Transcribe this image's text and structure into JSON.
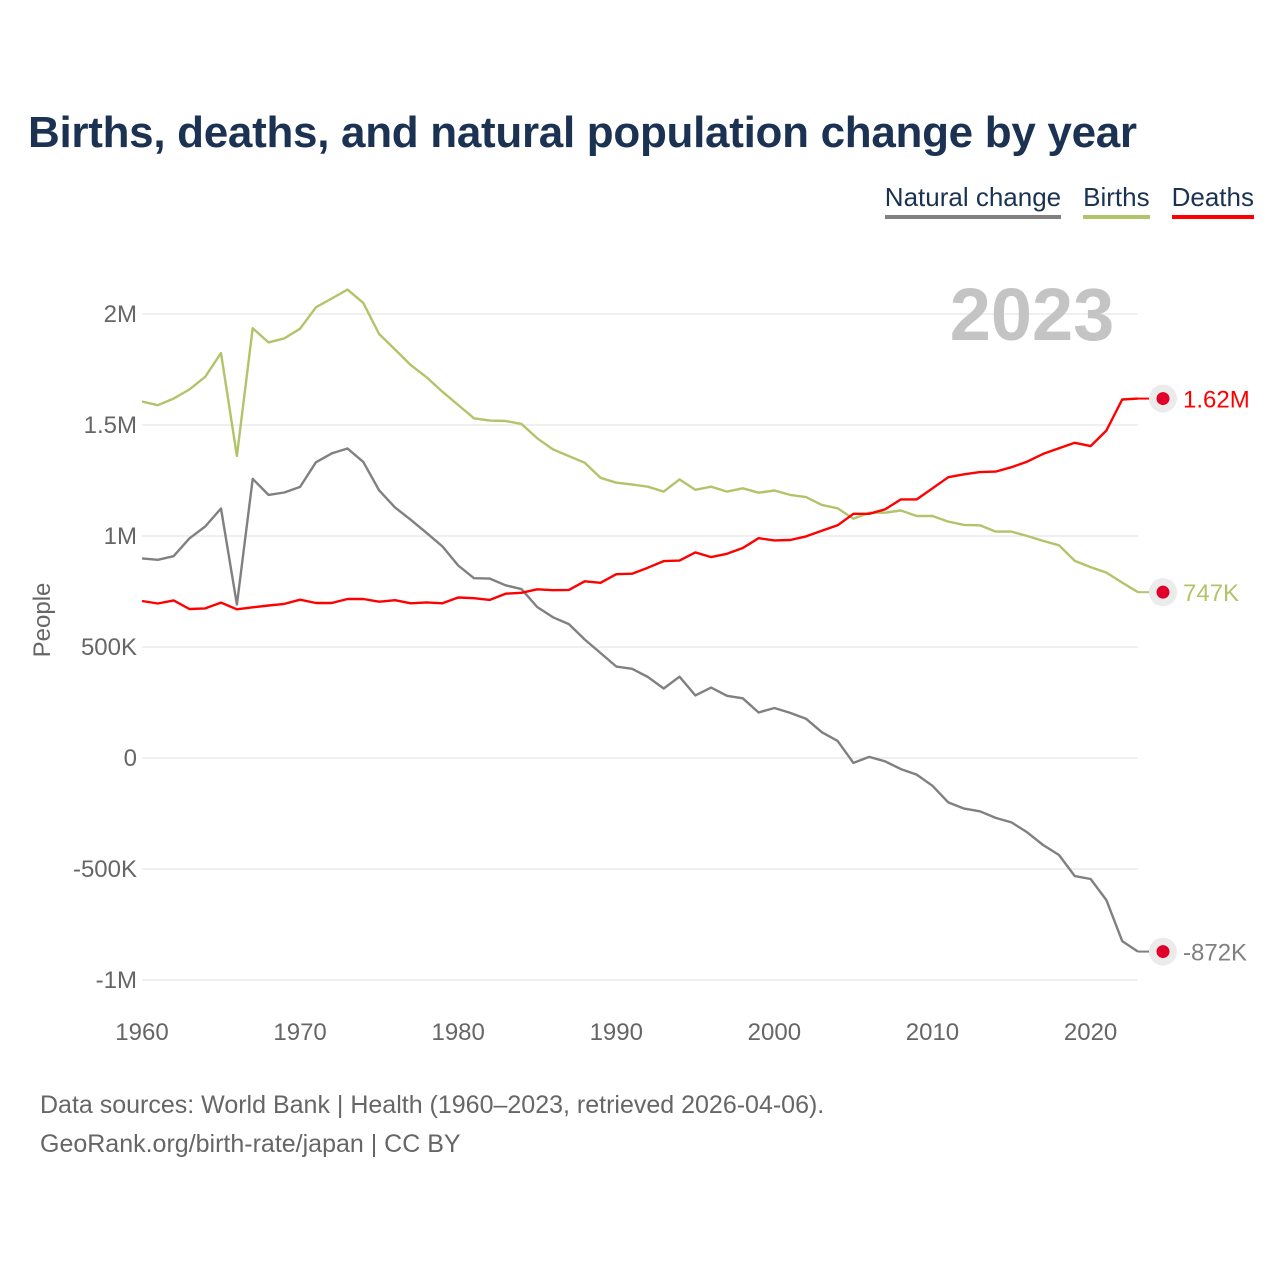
{
  "title": "Births, deaths, and natural population change by year",
  "legend": [
    {
      "label": "Natural change",
      "color": "#808080"
    },
    {
      "label": "Births",
      "color": "#b2c46a"
    },
    {
      "label": "Deaths",
      "color": "#ff0000"
    }
  ],
  "year_watermark": "2023",
  "footer": {
    "line1": "Data sources: World Bank | Health (1960–2023, retrieved 2026-04-06).",
    "line2": "GeoRank.org/birth-rate/japan | CC BY"
  },
  "chart_data": {
    "type": "line",
    "title": "Births, deaths, and natural population change by year",
    "xlabel": "",
    "ylabel": "People",
    "xlim": [
      1960,
      2023
    ],
    "ylim": [
      -1000000,
      2000000
    ],
    "x_ticks": [
      {
        "value": 1960,
        "label": "1960"
      },
      {
        "value": 1970,
        "label": "1970"
      },
      {
        "value": 1980,
        "label": "1980"
      },
      {
        "value": 1990,
        "label": "1990"
      },
      {
        "value": 2000,
        "label": "2000"
      },
      {
        "value": 2010,
        "label": "2010"
      },
      {
        "value": 2020,
        "label": "2020"
      }
    ],
    "y_ticks": [
      {
        "value": 2000000,
        "label": "2M"
      },
      {
        "value": 1500000,
        "label": "1.5M"
      },
      {
        "value": 1000000,
        "label": "1M"
      },
      {
        "value": 500000,
        "label": "500K"
      },
      {
        "value": 0,
        "label": "0"
      },
      {
        "value": -500000,
        "label": "-500K"
      },
      {
        "value": -1000000,
        "label": "-1M"
      }
    ],
    "grid": true,
    "legend_position": "top-right",
    "x_start": 1960,
    "units": "thousands",
    "series": [
      {
        "name": "Natural change",
        "color": "#808080",
        "end_label": "-872K",
        "values": [
          899,
          893,
          909,
          989,
          1043,
          1124,
          691,
          1257,
          1185,
          1196,
          1221,
          1332,
          1372,
          1394,
          1334,
          1206,
          1129,
          1073,
          1014,
          953,
          867,
          810,
          808,
          778,
          761,
          680,
          634,
          603,
          534,
          473,
          412,
          402,
          365,
          313,
          366,
          282,
          317,
          280,
          269,
          205,
          225,
          203,
          177,
          116,
          77,
          -22,
          5,
          -15,
          -50,
          -75,
          -125,
          -200,
          -228,
          -240,
          -270,
          -290,
          -335,
          -392,
          -437,
          -532,
          -545,
          -640,
          -825,
          -872
        ]
      },
      {
        "name": "Births",
        "color": "#b2c46a",
        "end_label": "747K",
        "values": [
          1606,
          1589,
          1619,
          1660,
          1717,
          1824,
          1361,
          1936,
          1872,
          1890,
          1934,
          2030,
          2070,
          2110,
          2050,
          1910,
          1840,
          1770,
          1715,
          1650,
          1590,
          1530,
          1520,
          1518,
          1505,
          1440,
          1390,
          1360,
          1330,
          1262,
          1240,
          1232,
          1222,
          1200,
          1255,
          1208,
          1222,
          1200,
          1215,
          1195,
          1205,
          1185,
          1175,
          1140,
          1125,
          1078,
          1105,
          1105,
          1115,
          1090,
          1090,
          1065,
          1050,
          1048,
          1020,
          1020,
          1000,
          978,
          958,
          888,
          860,
          835,
          790,
          747
        ]
      },
      {
        "name": "Deaths",
        "color": "#ff0000",
        "end_label": "1.62M",
        "values": [
          707,
          696,
          710,
          671,
          674,
          700,
          670,
          679,
          687,
          694,
          713,
          698,
          698,
          716,
          716,
          704,
          711,
          697,
          701,
          697,
          723,
          720,
          712,
          740,
          744,
          760,
          756,
          757,
          796,
          789,
          828,
          830,
          857,
          887,
          889,
          926,
          905,
          920,
          946,
          990,
          980,
          982,
          998,
          1024,
          1048,
          1100,
          1100,
          1120,
          1165,
          1165,
          1215,
          1265,
          1278,
          1288,
          1290,
          1310,
          1335,
          1370,
          1395,
          1420,
          1405,
          1475,
          1615,
          1619
        ]
      }
    ]
  }
}
